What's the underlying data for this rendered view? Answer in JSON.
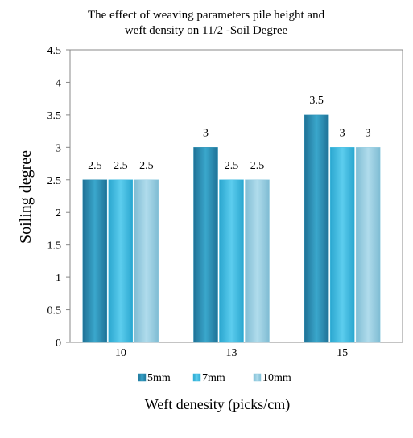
{
  "chart_data": {
    "type": "bar",
    "title_lines": [
      "The effect of weaving parameters pile height and",
      "weft density on 11/2 -Soil Degree"
    ],
    "xlabel": "Weft denesity (picks/cm)",
    "ylabel": "Soiling  degree",
    "categories": [
      "10",
      "13",
      "15"
    ],
    "ylim": [
      0,
      4.5
    ],
    "yticks": [
      "0",
      "0.5",
      "1",
      "1.5",
      "2",
      "2.5",
      "3",
      "3.5",
      "4",
      "4.5"
    ],
    "grid": false,
    "legend_position": "bottom",
    "series": [
      {
        "name": "5mm",
        "values": [
          2.5,
          3.0,
          3.5
        ],
        "labels": [
          "2.5",
          "3",
          "3.5"
        ],
        "color": "#2b8fb3"
      },
      {
        "name": "7mm",
        "values": [
          2.5,
          2.5,
          3.0
        ],
        "labels": [
          "2.5",
          "2.5",
          "3"
        ],
        "color": "#3fbbe0"
      },
      {
        "name": "10mm",
        "values": [
          2.5,
          2.5,
          3.0
        ],
        "labels": [
          "2.5",
          "2.5",
          "3"
        ],
        "color": "#8fcbe0"
      }
    ]
  }
}
